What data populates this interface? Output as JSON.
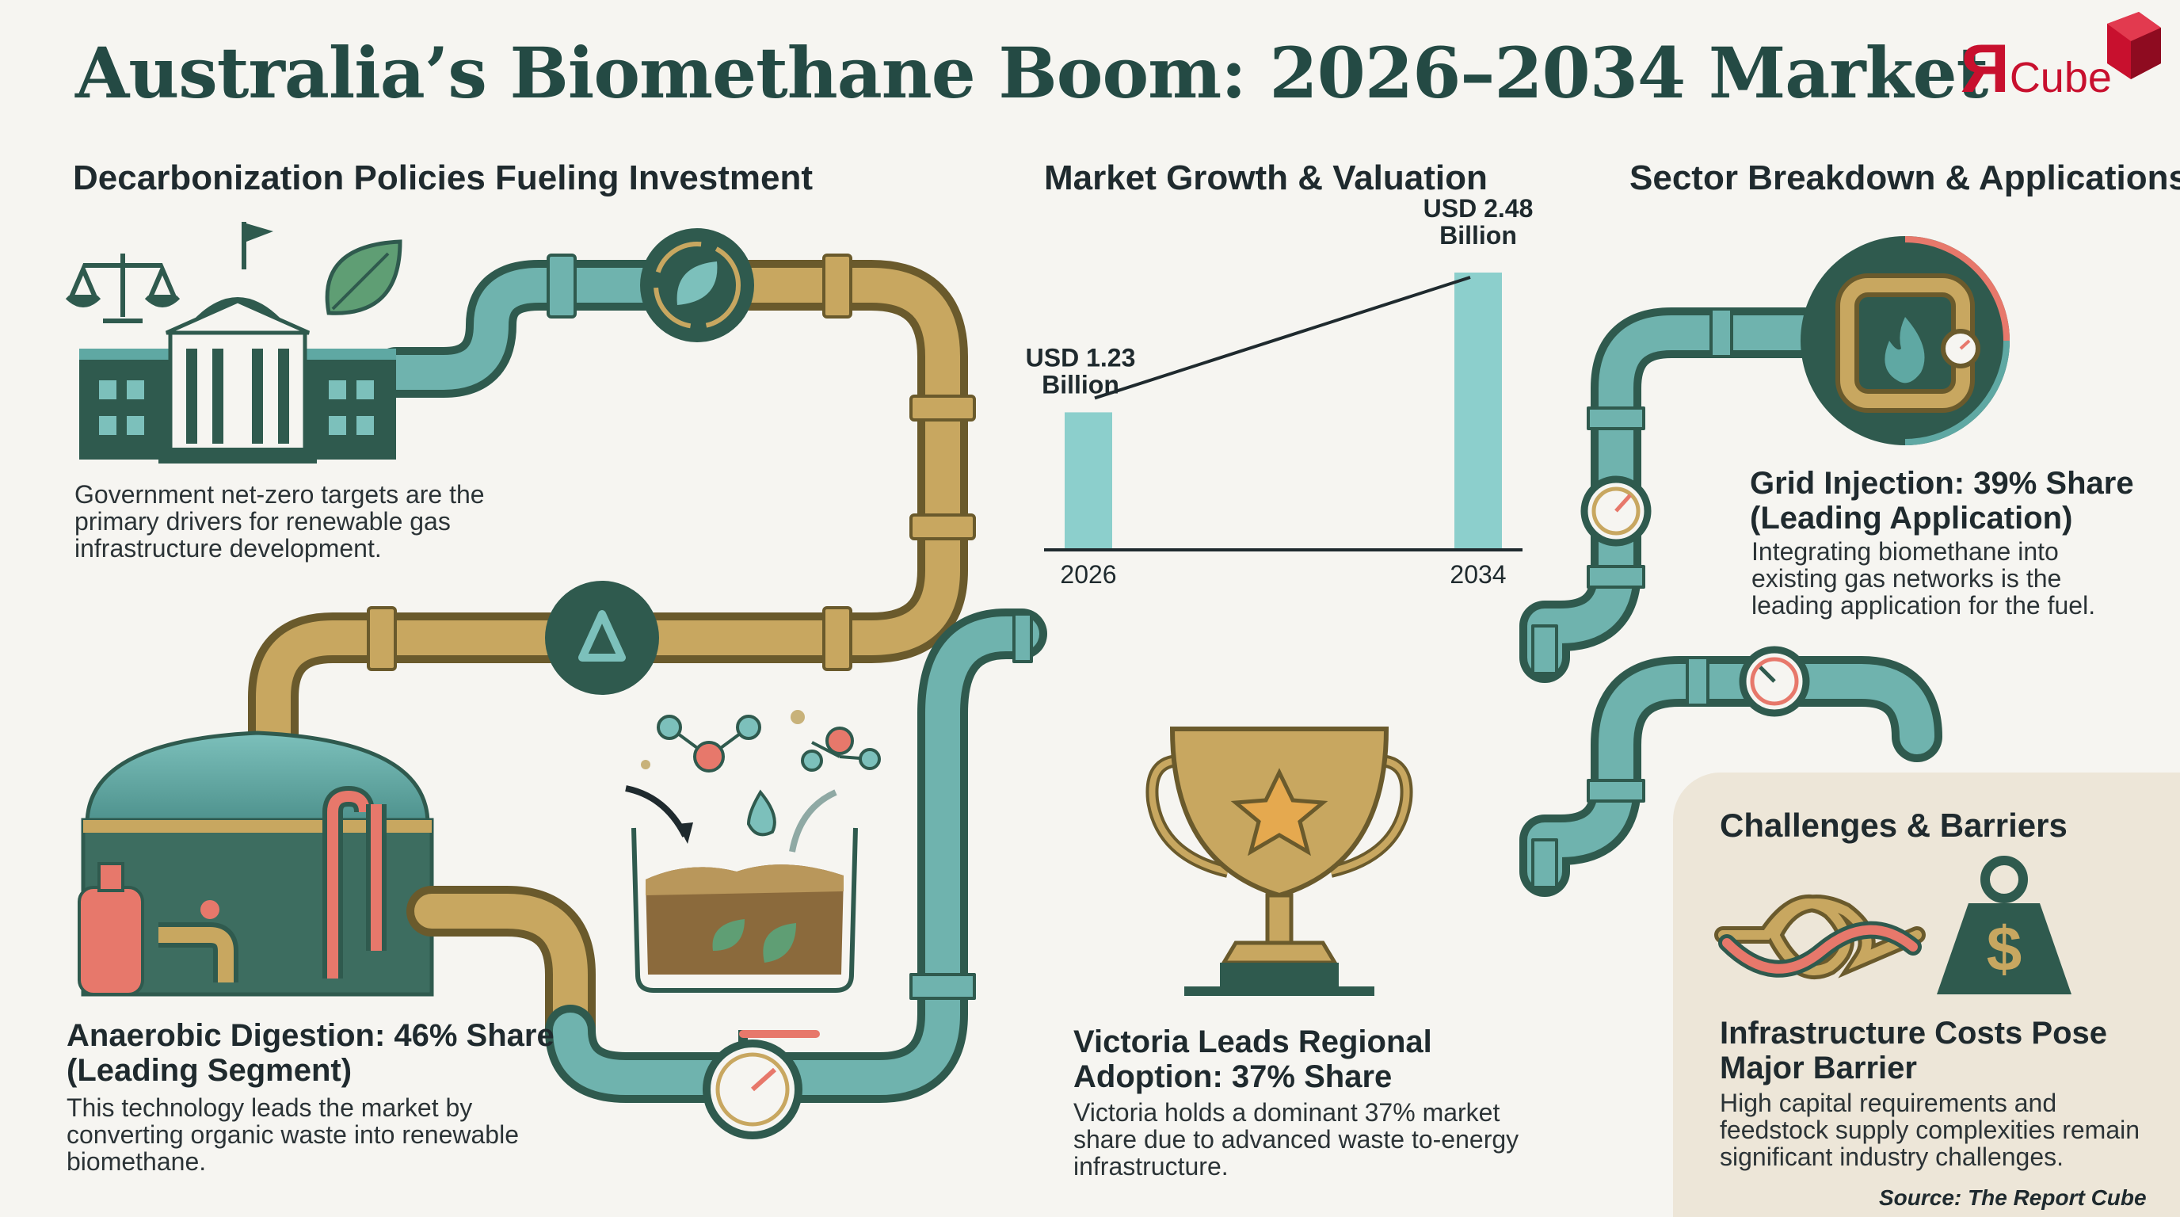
{
  "header": {
    "title": "Australia’s Biomethane Boom: 2026–2034 Market"
  },
  "logo": {
    "letter": "Я",
    "word": "Cube"
  },
  "policies": {
    "heading": "Decarbonization Policies Fueling Investment",
    "body": [
      "Government net-zero targets are the",
      "primary drivers for renewable gas",
      "infrastructure development."
    ]
  },
  "growth": {
    "heading": "Market Growth & Valuation"
  },
  "chart_data": {
    "type": "bar",
    "categories": [
      "2026",
      "2034"
    ],
    "values": [
      1.23,
      2.48
    ],
    "value_labels": [
      [
        "USD 1.23",
        "Billion"
      ],
      [
        "USD 2.48",
        "Billion"
      ]
    ],
    "unit": "USD Billion",
    "trend_line": true
  },
  "sector": {
    "heading": "Sector Breakdown & Applications"
  },
  "grid_injection": {
    "heading": [
      "Grid Injection: 39% Share",
      "(Leading Application)"
    ],
    "body": [
      "Integrating biomethane into",
      "existing gas networks is the",
      "leading application for the fuel."
    ]
  },
  "anaerobic": {
    "heading": [
      "Anaerobic Digestion: 46% Share",
      "(Leading Segment)"
    ],
    "body": [
      "This technology leads the market by",
      "converting organic waste into renewable",
      "biomethane."
    ]
  },
  "victoria": {
    "heading": [
      "Victoria Leads Regional",
      "Adoption: 37% Share"
    ],
    "body": [
      "Victoria holds a dominant 37% market",
      "share due to advanced waste to-energy",
      "infrastructure."
    ]
  },
  "challenges": {
    "heading": "Challenges & Barriers",
    "subheading": [
      "Infrastructure Costs Pose",
      "Major Barrier"
    ],
    "body": [
      "High capital requirements and",
      "feedstock supply complexities remain",
      "significant industry challenges."
    ]
  },
  "source": "Source: The Report Cube",
  "colors": {
    "teal": "#5fa8a3",
    "dark_green": "#2f5a4e",
    "gold": "#b9975b",
    "coral": "#e7786b",
    "panel": "#ede6d8"
  }
}
